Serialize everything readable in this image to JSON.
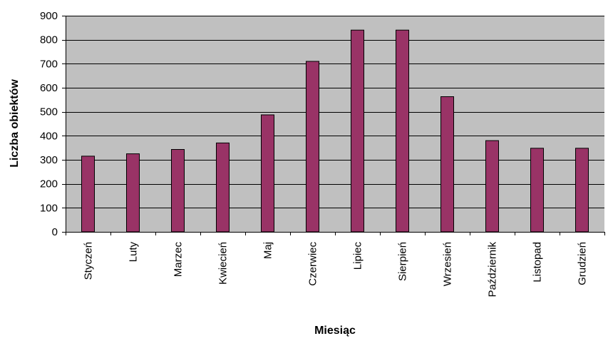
{
  "chart_data": {
    "type": "bar",
    "title": "",
    "xlabel": "Miesiąc",
    "ylabel": "Liczba obiektów",
    "ylim": [
      0,
      900
    ],
    "yticks": [
      0,
      100,
      200,
      300,
      400,
      500,
      600,
      700,
      800,
      900
    ],
    "grid": true,
    "legend": "none",
    "categories": [
      "Styczeń",
      "Luty",
      "Marzec",
      "Kwiecień",
      "Maj",
      "Czerwiec",
      "Lipiec",
      "Sierpień",
      "Wrzesień",
      "Październik",
      "Listopad",
      "Grudzień"
    ],
    "values": [
      315,
      325,
      343,
      370,
      487,
      710,
      840,
      840,
      563,
      380,
      348,
      348
    ],
    "colors": {
      "bar_fill": "#993366",
      "bar_stroke": "#000000",
      "plot_background": "#c0c0c0",
      "gridline": "#000000"
    }
  }
}
